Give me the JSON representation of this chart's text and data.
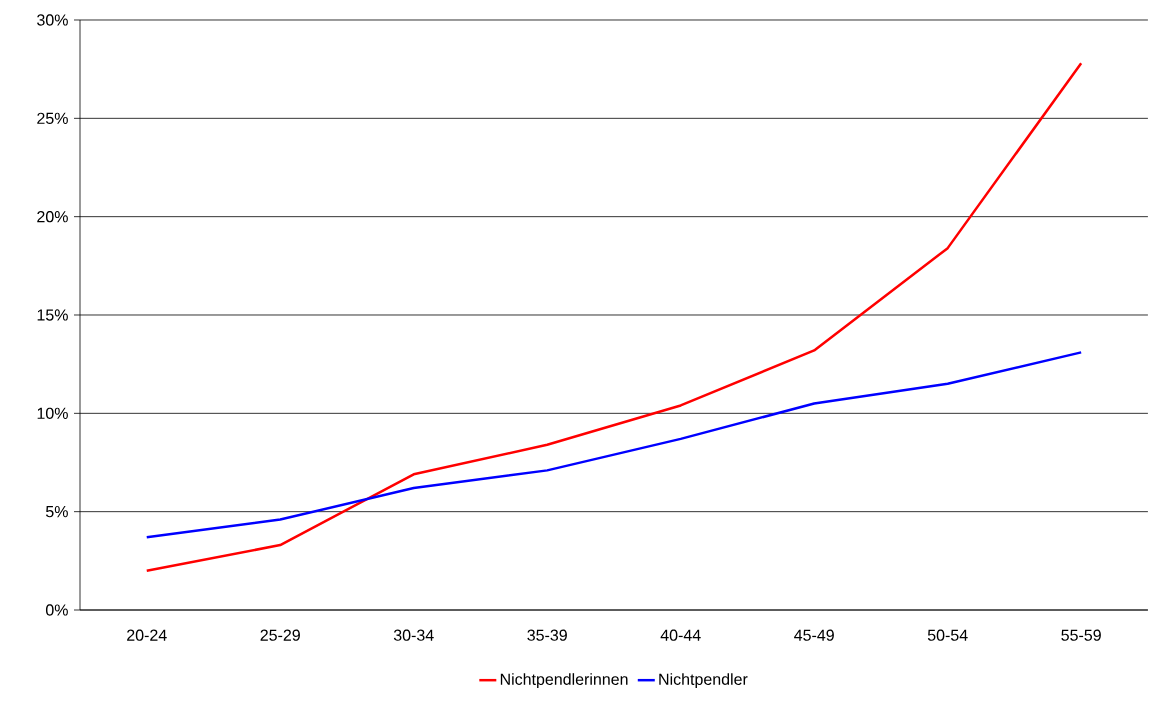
{
  "chart_data": {
    "type": "line",
    "categories": [
      "20-24",
      "25-29",
      "30-34",
      "35-39",
      "40-44",
      "45-49",
      "50-54",
      "55-59"
    ],
    "series": [
      {
        "name": "Nichtpendlerinnen",
        "color": "#ff0000",
        "values": [
          2.0,
          3.3,
          6.9,
          8.4,
          10.4,
          13.2,
          18.4,
          27.8
        ]
      },
      {
        "name": "Nichtpendler",
        "color": "#0000ff",
        "values": [
          3.7,
          4.6,
          6.2,
          7.1,
          8.7,
          10.5,
          11.5,
          13.1
        ]
      }
    ],
    "ylim": [
      0,
      30
    ],
    "yticks": [
      {
        "value": 0,
        "label": "0%"
      },
      {
        "value": 5,
        "label": "5%"
      },
      {
        "value": 10,
        "label": "10%"
      },
      {
        "value": 15,
        "label": "15%"
      },
      {
        "value": 20,
        "label": "20%"
      },
      {
        "value": 25,
        "label": "25%"
      },
      {
        "value": 30,
        "label": "30%"
      }
    ],
    "grid": "y",
    "legend": "bottom"
  }
}
